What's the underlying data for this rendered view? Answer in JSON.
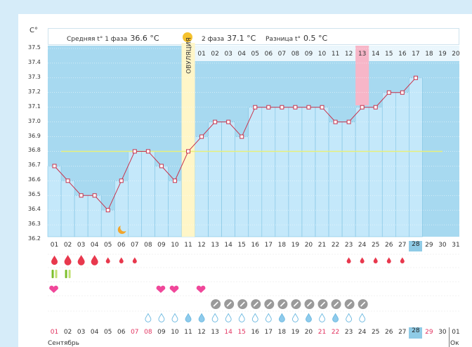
{
  "header": {
    "unit": "C°",
    "phase1_label": "Средняя t° 1 фаза",
    "phase1_value": "36.6 °C",
    "phase2_label": "2 фаза",
    "phase2_value": "37.1 °C",
    "diff_label": "Разница t°",
    "diff_value": "0.5 °C"
  },
  "ovulation_label": "ОВУЛЯЦИЯ",
  "y_ticks": [
    "37.5",
    "37.4",
    "37.3",
    "37.2",
    "37.1",
    "37.0",
    "36.9",
    "36.8",
    "36.7",
    "36.6",
    "36.5",
    "36.4",
    "36.3",
    "36.2"
  ],
  "phase2_days": [
    "01",
    "02",
    "03",
    "04",
    "05",
    "06",
    "07",
    "08",
    "09",
    "10",
    "11",
    "12",
    "13",
    "14",
    "15",
    "16",
    "17",
    "18",
    "19",
    "20"
  ],
  "phase2_highlight_day": "13",
  "x_days": [
    "01",
    "02",
    "03",
    "04",
    "05",
    "06",
    "07",
    "08",
    "09",
    "10",
    "11",
    "12",
    "13",
    "14",
    "15",
    "16",
    "17",
    "18",
    "19",
    "20",
    "21",
    "22",
    "23",
    "24",
    "25",
    "26",
    "27",
    "28",
    "29",
    "30",
    "31"
  ],
  "today_day": "28",
  "chart_data": {
    "type": "line",
    "title": "",
    "xlabel": "",
    "ylabel": "C°",
    "ylim": [
      36.2,
      37.5
    ],
    "x": [
      1,
      2,
      3,
      4,
      5,
      6,
      7,
      8,
      9,
      10,
      11,
      12,
      13,
      14,
      15,
      16,
      17,
      18,
      19,
      20,
      21,
      22,
      23,
      24,
      25,
      26,
      27,
      28
    ],
    "values": [
      36.7,
      36.6,
      36.5,
      36.5,
      36.4,
      36.6,
      36.8,
      36.8,
      36.7,
      36.6,
      36.8,
      36.9,
      37.0,
      37.0,
      36.9,
      37.1,
      37.1,
      37.1,
      37.1,
      37.1,
      37.1,
      37.0,
      37.0,
      37.1,
      37.1,
      37.2,
      37.2,
      37.3
    ],
    "coverline": 36.8,
    "ovulation_day": 11
  },
  "symptoms": {
    "bleeding_days": [
      1,
      2,
      3,
      4,
      5,
      6,
      7,
      23,
      24,
      25,
      26,
      27
    ],
    "bleeding_size": [
      2,
      3,
      3,
      3,
      1,
      1,
      1,
      1,
      1,
      1,
      1,
      1
    ],
    "tests_days": [
      1,
      2
    ],
    "hearts_days": [
      1,
      9,
      10,
      12
    ],
    "pill_days": [
      13,
      14,
      15,
      16,
      17,
      18,
      19,
      20,
      21,
      22,
      23,
      24
    ],
    "drop_days": [
      8,
      9,
      10,
      11,
      12,
      13,
      14,
      15,
      16,
      17,
      18,
      19,
      20,
      21,
      22,
      23,
      24
    ],
    "drop_filled": [
      11,
      12,
      18,
      20,
      22
    ]
  },
  "bottom_days": [
    "01",
    "02",
    "03",
    "04",
    "05",
    "06",
    "07",
    "08",
    "09",
    "10",
    "11",
    "12",
    "13",
    "14",
    "15",
    "16",
    "17",
    "18",
    "19",
    "20",
    "21",
    "22",
    "23",
    "24",
    "25",
    "26",
    "27",
    "28",
    "29",
    "30",
    "01"
  ],
  "bottom_red": [
    "01",
    "07",
    "08",
    "14",
    "15",
    "21",
    "22",
    "29"
  ],
  "month_sep": "Сентябрь",
  "month_oct": "Ок",
  "colors": {
    "sky": "#a7d9f0",
    "bar": "#c4e8fa",
    "line": "#c8324b",
    "ovulation": "#fff6c8",
    "highlight": "#f7b6c8",
    "today": "#8fcbe6"
  }
}
